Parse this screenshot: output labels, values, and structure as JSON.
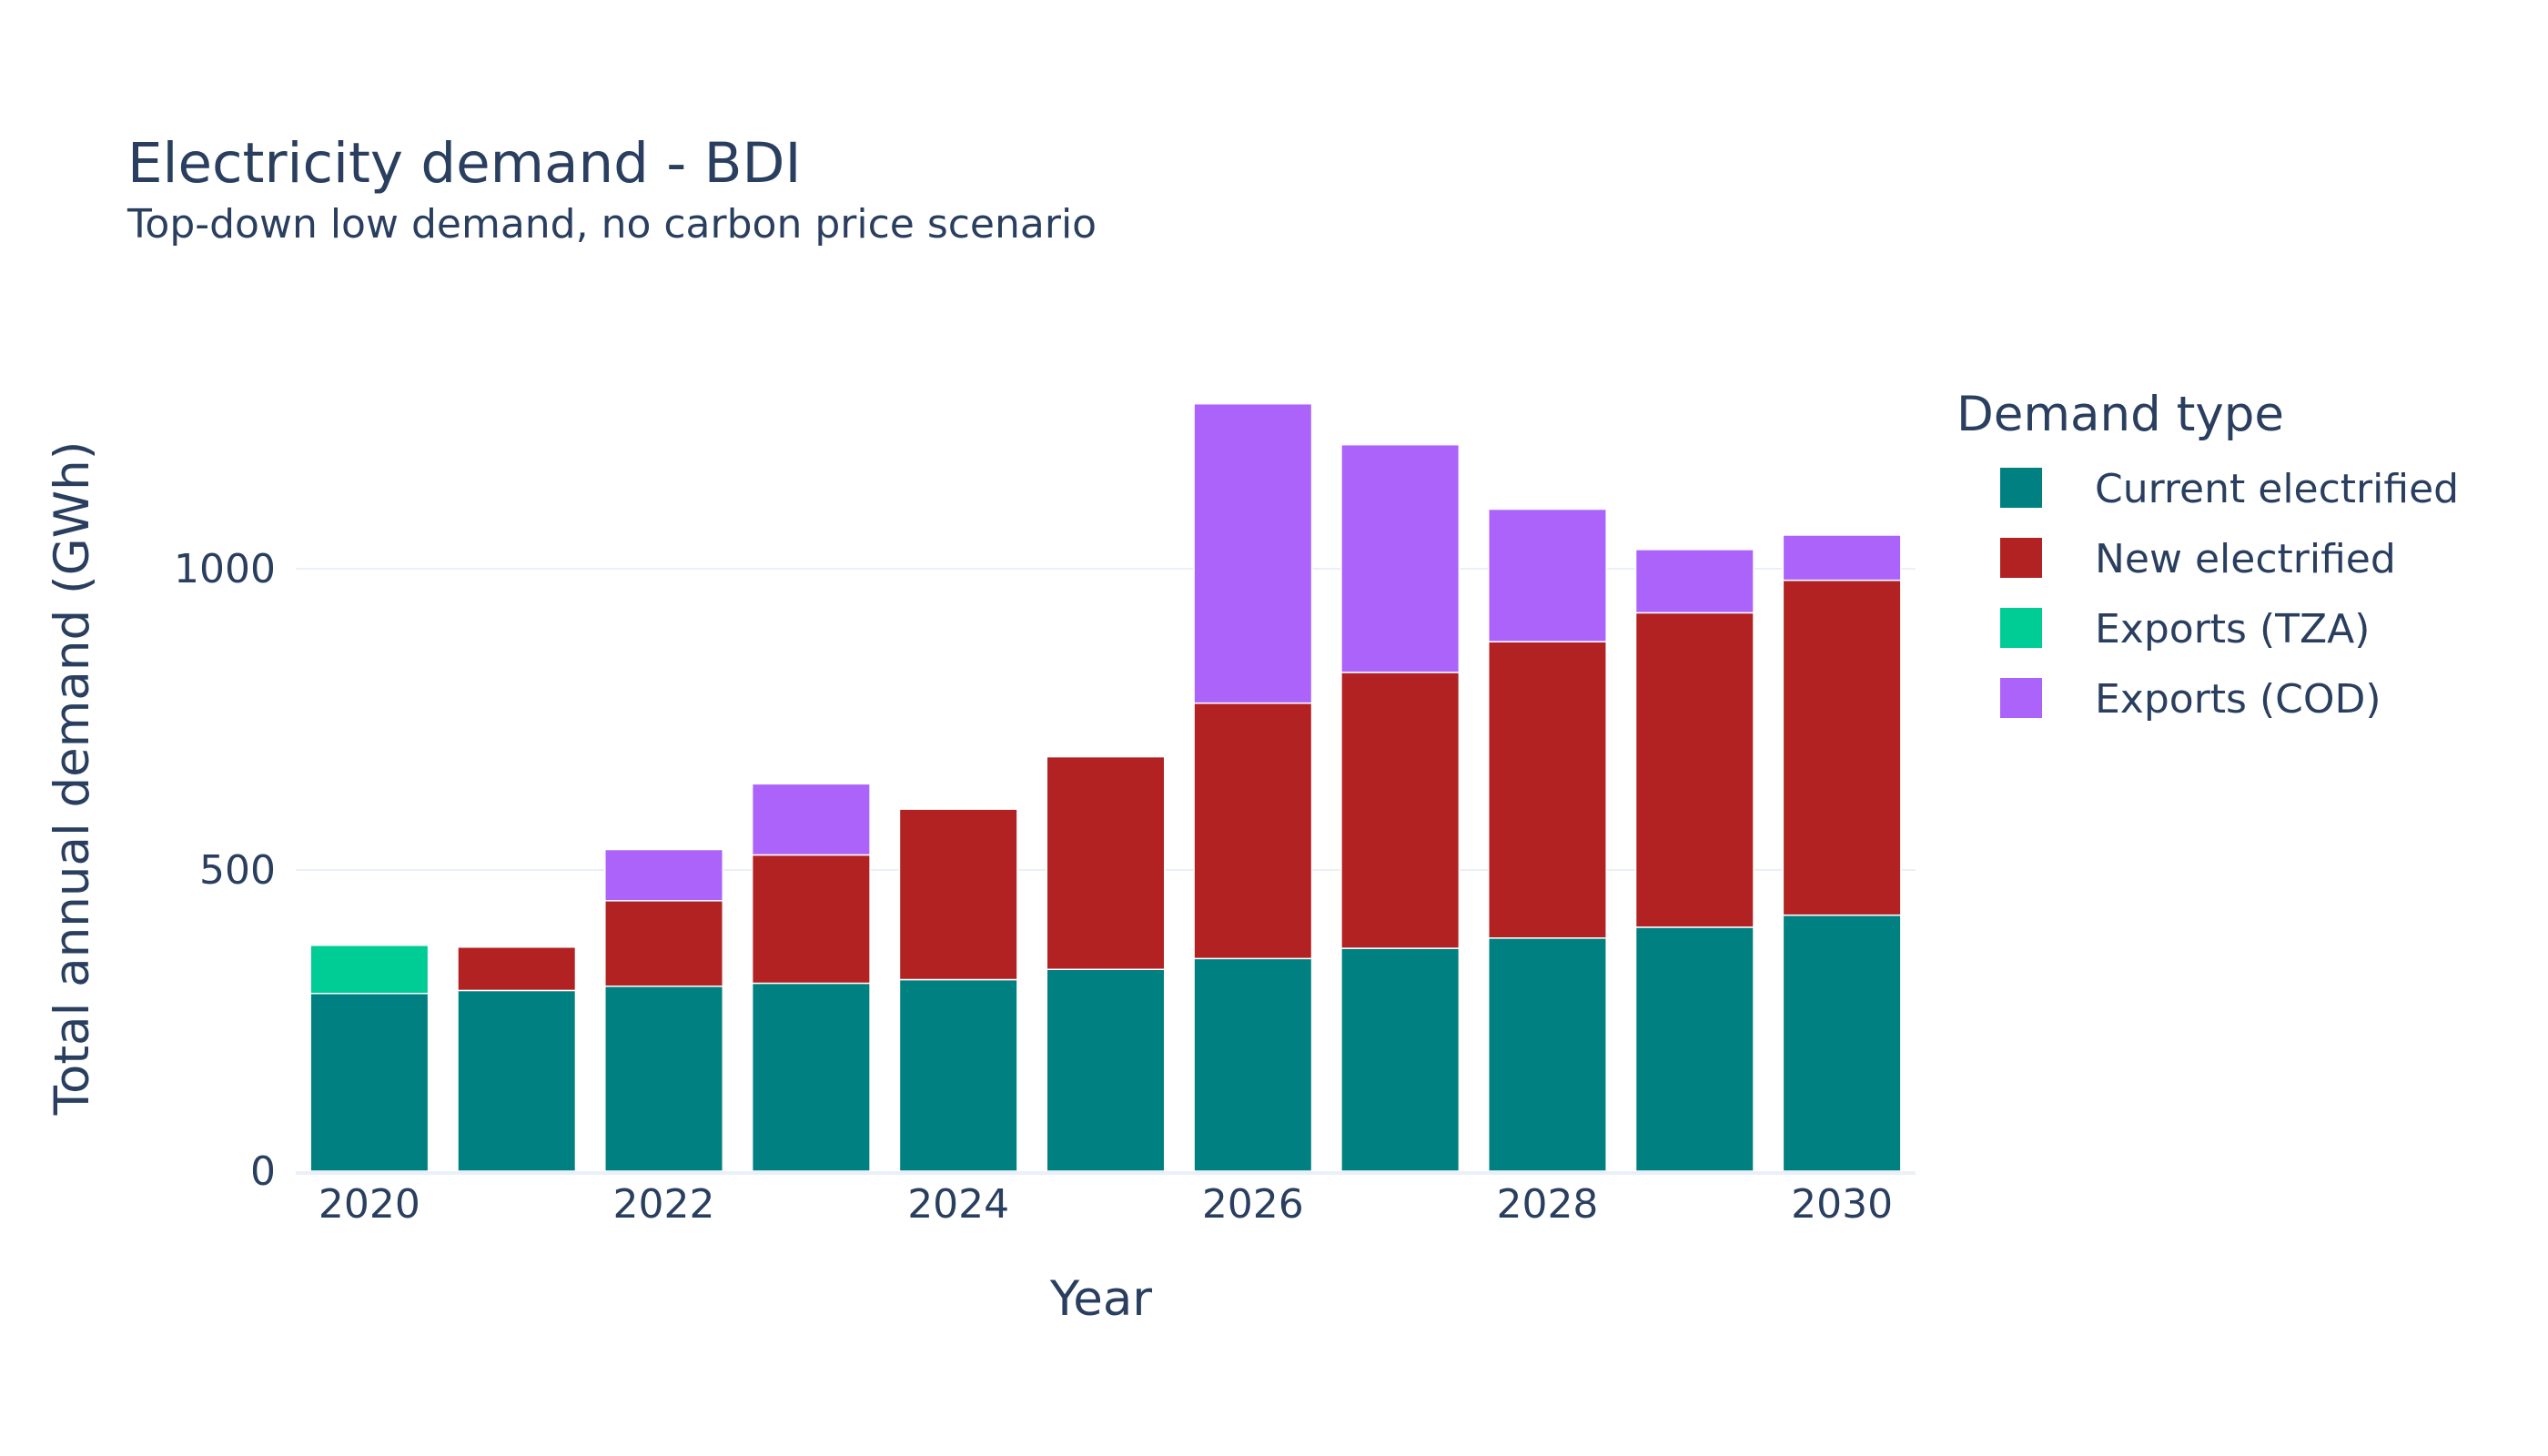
{
  "chart_data": {
    "type": "bar",
    "stacked": true,
    "title": "Electricity demand - BDI",
    "subtitle": "Top-down low demand, no carbon price scenario",
    "xlabel": "Year",
    "ylabel": "Total annual demand (GWh)",
    "x": [
      2020,
      2021,
      2022,
      2023,
      2024,
      2025,
      2026,
      2027,
      2028,
      2029,
      2030
    ],
    "x_ticks": [
      "2020",
      "2022",
      "2024",
      "2026",
      "2028",
      "2030"
    ],
    "y_ticks": [
      "0",
      "500",
      "1000"
    ],
    "ylim": [
      0,
      1340
    ],
    "grid": true,
    "legend_title": "Demand type",
    "legend_position": "right",
    "series": [
      {
        "name": "Current electrified",
        "color": "#008080",
        "values": [
          295,
          300,
          307,
          312,
          318,
          335,
          353,
          370,
          387,
          405,
          425
        ]
      },
      {
        "name": "New electrified",
        "color": "#b22222",
        "values": [
          0,
          72,
          142,
          213,
          283,
          353,
          424,
          458,
          492,
          522,
          556
        ]
      },
      {
        "name": "Exports (TZA)",
        "color": "#00cc96",
        "values": [
          80,
          0,
          0,
          0,
          0,
          0,
          0,
          0,
          0,
          0,
          0
        ]
      },
      {
        "name": "Exports (COD)",
        "color": "#ab63fa",
        "values": [
          0,
          0,
          85,
          118,
          0,
          0,
          497,
          378,
          220,
          105,
          75
        ]
      }
    ]
  }
}
